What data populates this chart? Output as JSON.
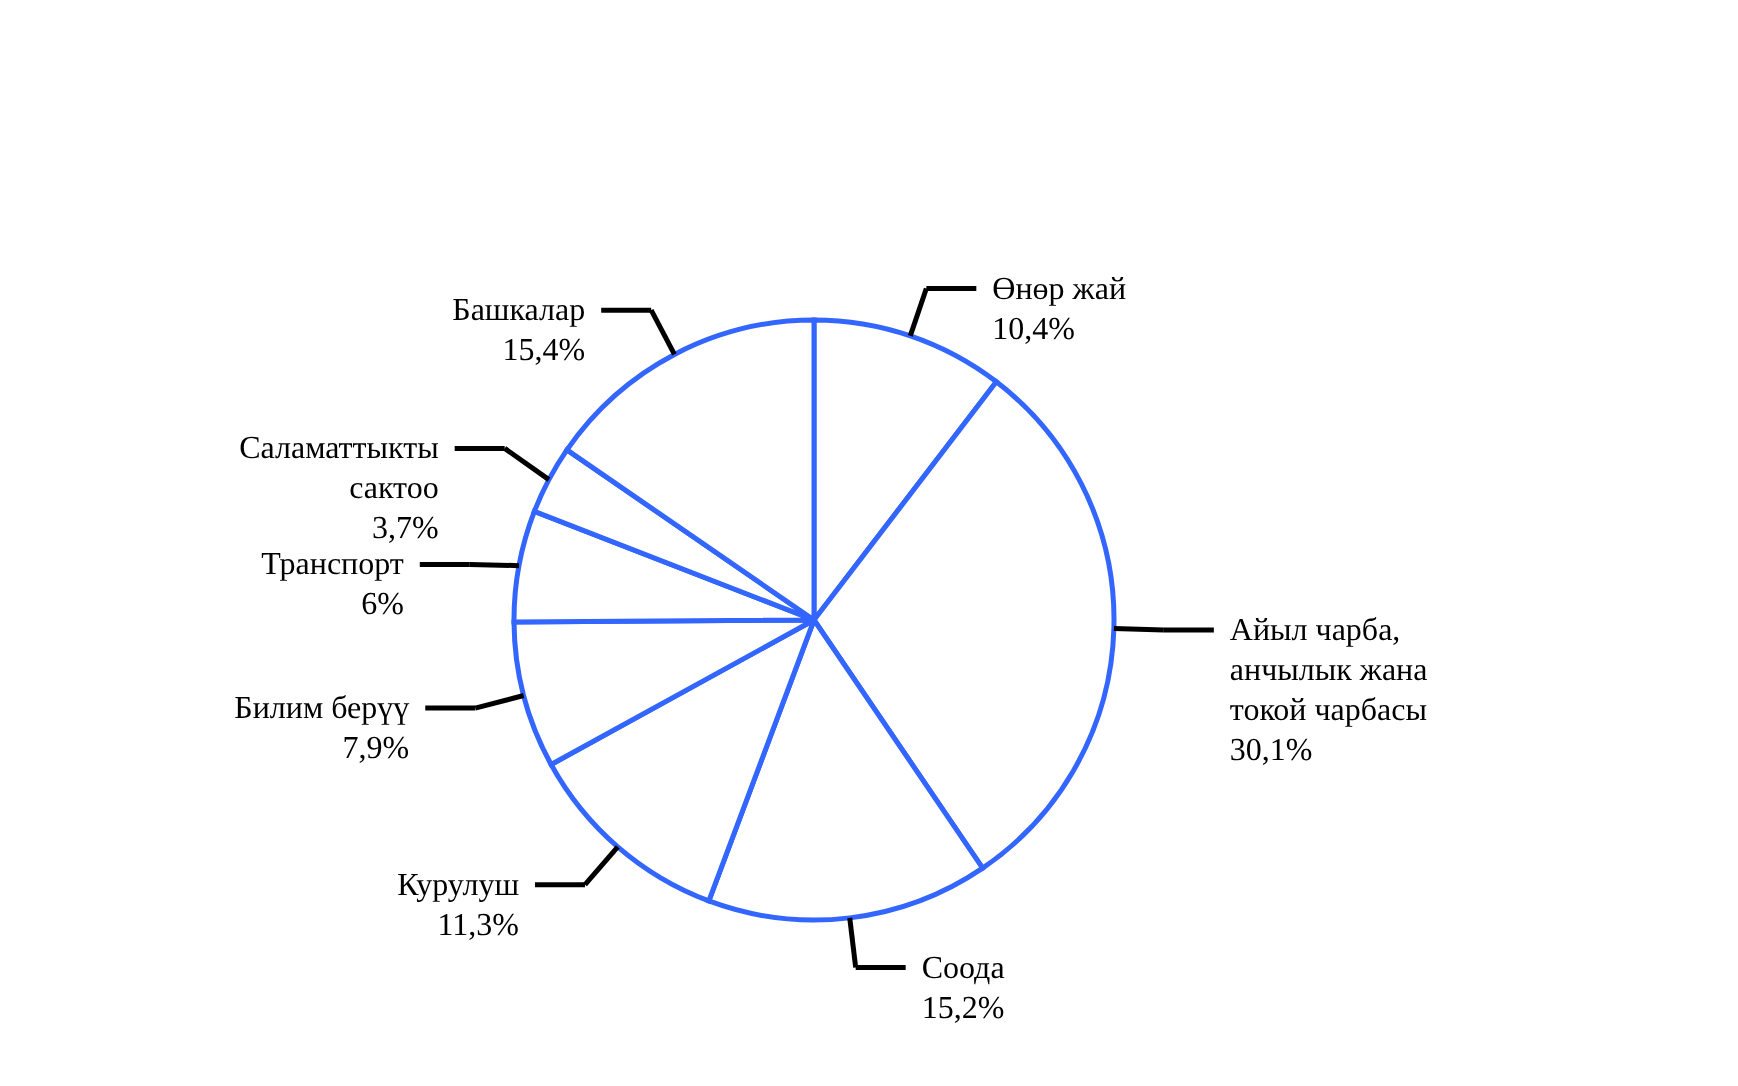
{
  "chart_data": {
    "type": "pie",
    "categories": [
      "Өнөр жай",
      "Айыл чарба, анчылык жана токой чарбасы",
      "Соода",
      "Курулуш",
      "Билим берүү",
      "Транспорт",
      "Саламаттыкты сактоо",
      "Башкалар"
    ],
    "values": [
      10.4,
      30.1,
      15.2,
      11.3,
      7.9,
      6,
      3.7,
      15.4
    ],
    "value_labels": [
      "10,4%",
      "30,1%",
      "15,2%",
      "11,3%",
      "7,9%",
      "6%",
      "3,7%",
      "15,4%"
    ],
    "colors": [
      "#ffffff",
      "#ffffff",
      "#ffffff",
      "#ffffff",
      "#ffffff",
      "#ffffff",
      "#ffffff",
      "#ffffff"
    ]
  }
}
